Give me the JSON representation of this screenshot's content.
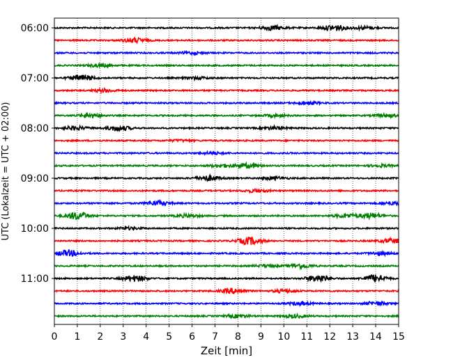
{
  "chart_data": {
    "type": "line",
    "title": "",
    "xlabel": "Zeit  [min]",
    "ylabel": "UTC (Lokalzeit = UTC + 02:00)",
    "xlim": [
      0,
      15
    ],
    "x_ticks": [
      0,
      1,
      2,
      3,
      4,
      5,
      6,
      7,
      8,
      9,
      10,
      11,
      12,
      13,
      14,
      15
    ],
    "x_grid": "dotted vertical lines at each minute",
    "y_tick_labels": [
      "06:00",
      "07:00",
      "08:00",
      "09:00",
      "10:00",
      "11:00"
    ],
    "trace_interval_minutes": 15,
    "trace_count": 24,
    "trace_colors": [
      "#000000",
      "#ff0000",
      "#0000ff",
      "#008000"
    ],
    "traces": [
      {
        "start": "06:00",
        "color": "#000000",
        "events": [
          {
            "t": 9.5,
            "amp": 3
          },
          {
            "t": 12.2,
            "amp": 4
          },
          {
            "t": 13.5,
            "amp": 2
          }
        ]
      },
      {
        "start": "06:15",
        "color": "#ff0000",
        "events": [
          {
            "t": 3.5,
            "amp": 3
          }
        ]
      },
      {
        "start": "06:30",
        "color": "#0000ff",
        "events": [
          {
            "t": 6.0,
            "amp": 1.5
          }
        ]
      },
      {
        "start": "06:45",
        "color": "#008000",
        "events": [
          {
            "t": 2.0,
            "amp": 2
          }
        ]
      },
      {
        "start": "07:00",
        "color": "#000000",
        "events": [
          {
            "t": 1.2,
            "amp": 4
          },
          {
            "t": 6.2,
            "amp": 1.5
          }
        ]
      },
      {
        "start": "07:15",
        "color": "#ff0000",
        "events": [
          {
            "t": 2.2,
            "amp": 2
          }
        ]
      },
      {
        "start": "07:30",
        "color": "#0000ff",
        "events": [
          {
            "t": 11.0,
            "amp": 2
          }
        ]
      },
      {
        "start": "07:45",
        "color": "#008000",
        "events": [
          {
            "t": 1.6,
            "amp": 3
          },
          {
            "t": 9.6,
            "amp": 1.5
          },
          {
            "t": 14.5,
            "amp": 2
          }
        ]
      },
      {
        "start": "08:00",
        "color": "#000000",
        "events": [
          {
            "t": 0.9,
            "amp": 2.5
          },
          {
            "t": 2.8,
            "amp": 3.5
          },
          {
            "t": 9.6,
            "amp": 2
          }
        ]
      },
      {
        "start": "08:15",
        "color": "#ff0000",
        "events": [
          {
            "t": 5.5,
            "amp": 1
          }
        ]
      },
      {
        "start": "08:30",
        "color": "#0000ff",
        "events": [
          {
            "t": 6.9,
            "amp": 1.5
          }
        ]
      },
      {
        "start": "08:45",
        "color": "#008000",
        "events": [
          {
            "t": 7.3,
            "amp": 2
          },
          {
            "t": 8.5,
            "amp": 3
          },
          {
            "t": 14.2,
            "amp": 1.5
          }
        ]
      },
      {
        "start": "09:00",
        "color": "#000000",
        "events": [
          {
            "t": 6.7,
            "amp": 3.5
          },
          {
            "t": 9.6,
            "amp": 2
          }
        ]
      },
      {
        "start": "09:15",
        "color": "#ff0000",
        "events": [
          {
            "t": 8.8,
            "amp": 2
          }
        ]
      },
      {
        "start": "09:30",
        "color": "#0000ff",
        "events": [
          {
            "t": 4.5,
            "amp": 3
          },
          {
            "t": 14.8,
            "amp": 2
          }
        ]
      },
      {
        "start": "09:45",
        "color": "#008000",
        "events": [
          {
            "t": 1.0,
            "amp": 5
          },
          {
            "t": 5.8,
            "amp": 2
          },
          {
            "t": 12.7,
            "amp": 2.5
          },
          {
            "t": 13.8,
            "amp": 3.5
          }
        ]
      },
      {
        "start": "10:00",
        "color": "#000000",
        "events": [
          {
            "t": 3.3,
            "amp": 1.5
          }
        ]
      },
      {
        "start": "10:15",
        "color": "#ff0000",
        "events": [
          {
            "t": 8.5,
            "amp": 5
          },
          {
            "t": 14.7,
            "amp": 3
          }
        ]
      },
      {
        "start": "10:30",
        "color": "#0000ff",
        "events": [
          {
            "t": 0.6,
            "amp": 4
          },
          {
            "t": 14.2,
            "amp": 2
          }
        ]
      },
      {
        "start": "10:45",
        "color": "#008000",
        "events": [
          {
            "t": 9.2,
            "amp": 1.5
          },
          {
            "t": 10.7,
            "amp": 3
          }
        ]
      },
      {
        "start": "11:00",
        "color": "#000000",
        "events": [
          {
            "t": 3.5,
            "amp": 4
          },
          {
            "t": 11.5,
            "amp": 5
          },
          {
            "t": 14.0,
            "amp": 5
          }
        ]
      },
      {
        "start": "11:15",
        "color": "#ff0000",
        "events": [
          {
            "t": 7.8,
            "amp": 3.5
          },
          {
            "t": 10.0,
            "amp": 2
          }
        ]
      },
      {
        "start": "11:30",
        "color": "#0000ff",
        "events": [
          {
            "t": 10.7,
            "amp": 2
          },
          {
            "t": 14.0,
            "amp": 2.5
          }
        ]
      },
      {
        "start": "11:45",
        "color": "#008000",
        "events": [
          {
            "t": 8.0,
            "amp": 2
          },
          {
            "t": 10.5,
            "amp": 2
          }
        ]
      }
    ]
  }
}
